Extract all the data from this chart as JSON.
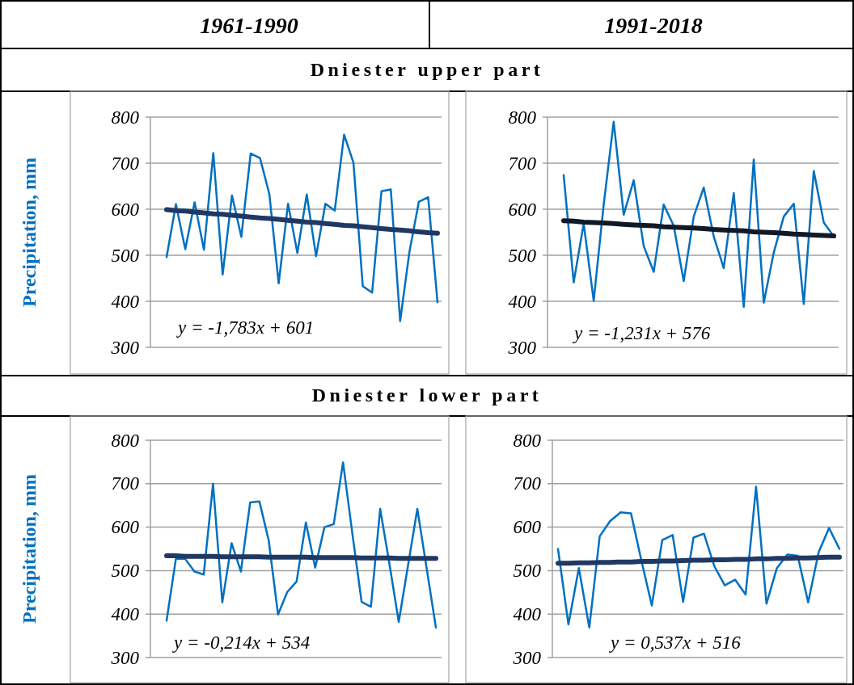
{
  "chart_data": [
    {
      "type": "line",
      "title": "1961-1990",
      "subtitle": "Dniester upper part",
      "ylabel": "Precipitation, mm",
      "categories": [
        null,
        null,
        null,
        null,
        null,
        null,
        null,
        null,
        null,
        null,
        null,
        null,
        null,
        null,
        null,
        null,
        null,
        null,
        null,
        null,
        null,
        null,
        null,
        null,
        null,
        null,
        null,
        null,
        null,
        null
      ],
      "ylim": [
        300,
        800
      ],
      "yticks": [
        300,
        400,
        500,
        600,
        700,
        800
      ],
      "grid": "y",
      "tick_labels": "y",
      "marker": "none",
      "annotations": [
        "y = -1,783x + 601"
      ],
      "series": [
        {
          "color": "#0070c0",
          "values": [
            496,
            611,
            513,
            615,
            512,
            722,
            458,
            630,
            540,
            721,
            711,
            633,
            439,
            612,
            505,
            632,
            498,
            612,
            597,
            762,
            701,
            433,
            419,
            639,
            643,
            357,
            508,
            616,
            626,
            398
          ]
        },
        {
          "color": "#203864",
          "values": [
            599,
            597,
            596,
            594,
            592,
            590,
            589,
            587,
            585,
            583,
            581,
            580,
            578,
            576,
            574,
            572,
            571,
            569,
            567,
            565,
            564,
            562,
            560,
            558,
            556,
            555,
            553,
            551,
            549,
            548
          ]
        }
      ]
    },
    {
      "type": "line",
      "title": "1991-2018",
      "categories": [
        null,
        null,
        null,
        null,
        null,
        null,
        null,
        null,
        null,
        null,
        null,
        null,
        null,
        null,
        null,
        null,
        null,
        null,
        null,
        null,
        null,
        null,
        null,
        null,
        null,
        null,
        null,
        null
      ],
      "ylim": [
        300,
        800
      ],
      "yticks": [
        300,
        400,
        500,
        600,
        700,
        800
      ],
      "grid": "y",
      "tick_labels": "y",
      "marker": "none",
      "annotations": [
        "y = -1,231x + 576"
      ],
      "series": [
        {
          "color": "#0070c0",
          "values": [
            674,
            441,
            569,
            401,
            610,
            790,
            588,
            663,
            520,
            464,
            610,
            564,
            444,
            584,
            647,
            541,
            472,
            635,
            388,
            708,
            397,
            506,
            584,
            612,
            394,
            683,
            571,
            541
          ]
        },
        {
          "color": "#111827",
          "values": [
            575,
            574,
            572,
            571,
            570,
            569,
            567,
            566,
            565,
            564,
            562,
            561,
            560,
            559,
            558,
            556,
            555,
            554,
            553,
            551,
            550,
            549,
            548,
            546,
            545,
            544,
            543,
            542
          ]
        }
      ]
    },
    {
      "type": "line",
      "subtitle": "Dniester lower part",
      "ylabel": "Precipitation, mm",
      "categories": [
        null,
        null,
        null,
        null,
        null,
        null,
        null,
        null,
        null,
        null,
        null,
        null,
        null,
        null,
        null,
        null,
        null,
        null,
        null,
        null,
        null,
        null,
        null,
        null,
        null,
        null,
        null,
        null,
        null,
        null
      ],
      "ylim": [
        300,
        800
      ],
      "yticks": [
        300,
        400,
        500,
        600,
        700,
        800
      ],
      "grid": "y",
      "tick_labels": "y",
      "marker": "none",
      "annotations": [
        "y = -0,214x + 534"
      ],
      "series": [
        {
          "color": "#0070c0",
          "values": [
            385,
            527,
            527,
            498,
            491,
            700,
            427,
            563,
            498,
            657,
            659,
            569,
            399,
            451,
            475,
            611,
            507,
            600,
            607,
            749,
            586,
            428,
            417,
            642,
            515,
            382,
            512,
            642,
            506,
            369
          ]
        },
        {
          "color": "#203864",
          "values": [
            534,
            534,
            533,
            533,
            533,
            533,
            532,
            532,
            532,
            532,
            532,
            531,
            531,
            531,
            531,
            531,
            530,
            530,
            530,
            530,
            530,
            529,
            529,
            529,
            529,
            528,
            528,
            528,
            528,
            528
          ]
        }
      ]
    },
    {
      "type": "line",
      "categories": [
        null,
        null,
        null,
        null,
        null,
        null,
        null,
        null,
        null,
        null,
        null,
        null,
        null,
        null,
        null,
        null,
        null,
        null,
        null,
        null,
        null,
        null,
        null,
        null,
        null,
        null,
        null,
        null
      ],
      "ylim": [
        300,
        800
      ],
      "yticks": [
        300,
        400,
        500,
        600,
        700,
        800
      ],
      "grid": "y",
      "tick_labels": "y",
      "marker": "none",
      "annotations": [
        "y = 0,537x + 516"
      ],
      "series": [
        {
          "color": "#0070c0",
          "values": [
            550,
            376,
            506,
            369,
            579,
            614,
            634,
            632,
            523,
            420,
            570,
            582,
            428,
            576,
            585,
            510,
            466,
            479,
            445,
            693,
            424,
            506,
            537,
            534,
            427,
            542,
            598,
            550
          ]
        },
        {
          "color": "#203864",
          "values": [
            517,
            517,
            518,
            518,
            519,
            519,
            520,
            520,
            521,
            521,
            522,
            522,
            523,
            524,
            524,
            525,
            525,
            526,
            526,
            527,
            527,
            528,
            528,
            529,
            529,
            530,
            531,
            531
          ]
        }
      ]
    }
  ]
}
